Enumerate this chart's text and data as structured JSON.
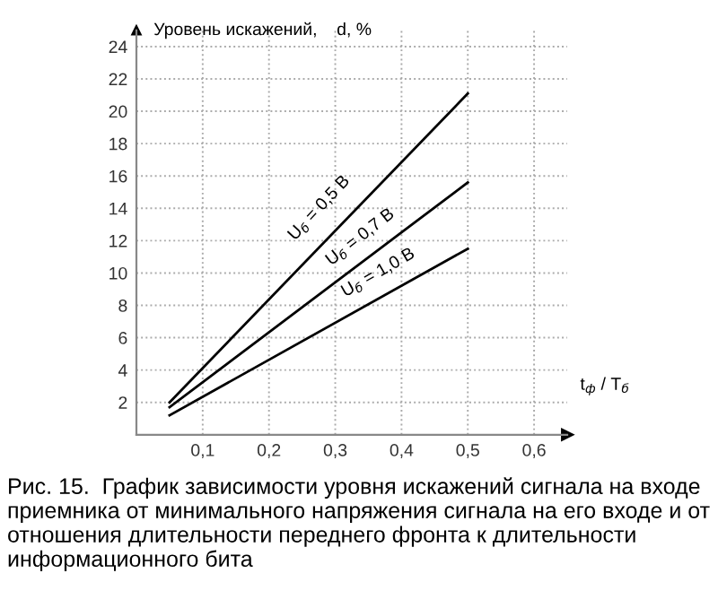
{
  "chart_data": {
    "type": "line",
    "ylabel": "Уровень искажений,    d, %",
    "xlabel": "t$_{ф}$ / T$_{б}$",
    "x": [
      0.05,
      0.5
    ],
    "series": [
      {
        "name": "U$_{б}$ = 0,5 В",
        "color": "#000000",
        "values": [
          2.0,
          21.1
        ]
      },
      {
        "name": "U$_{б}$ = 0,7 В",
        "color": "#000000",
        "values": [
          1.7,
          15.6
        ]
      },
      {
        "name": "U$_{б}$ = 1,0 В",
        "color": "#000000",
        "values": [
          1.2,
          11.5
        ]
      }
    ],
    "xlim": [
      0,
      0.65
    ],
    "ylim": [
      0,
      25
    ],
    "xticks": [
      {
        "value": 0.1,
        "label": "0,1"
      },
      {
        "value": 0.2,
        "label": "0,2"
      },
      {
        "value": 0.3,
        "label": "0,3"
      },
      {
        "value": 0.4,
        "label": "0,4"
      },
      {
        "value": 0.5,
        "label": "0,5"
      },
      {
        "value": 0.6,
        "label": "0,6"
      }
    ],
    "yticks": [
      2,
      4,
      6,
      8,
      10,
      12,
      14,
      16,
      18,
      20,
      22,
      24
    ],
    "grid": true,
    "legend": false,
    "marker": "none",
    "line_style": "solid",
    "annotations": [
      "Рис. 15.  График зависимости уровня искажений сигнала на входе приемника от минимального напряжения сигнала на его входе и от отношения длительности переднего фронта к длительности информационного бита"
    ]
  }
}
